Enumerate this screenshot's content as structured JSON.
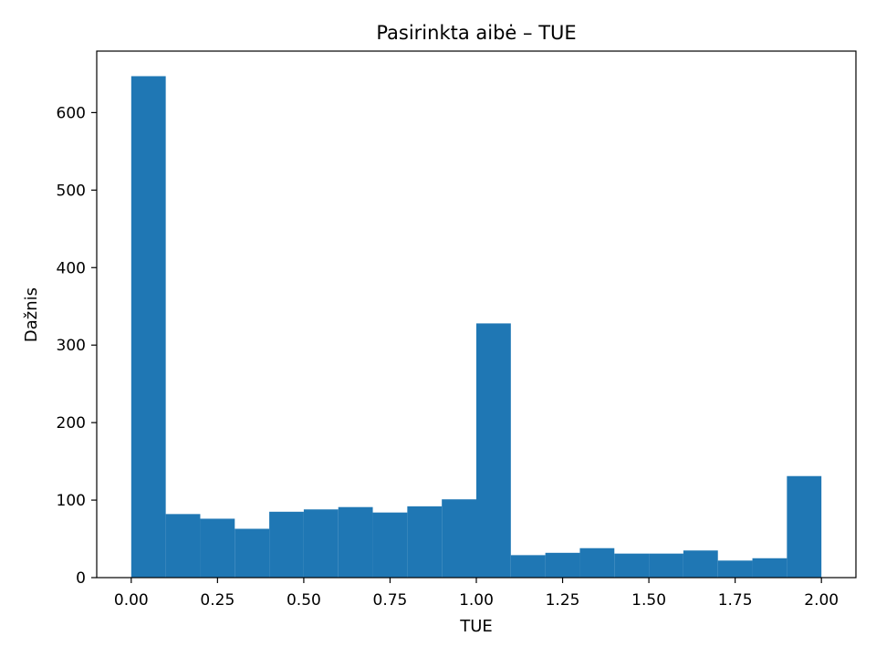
{
  "chart_data": {
    "type": "bar",
    "title": "Pasirinkta aibė – TUE",
    "xlabel": "TUE",
    "ylabel": "Dažnis",
    "bin_edges": [
      0.0,
      0.1,
      0.2,
      0.3,
      0.4,
      0.5,
      0.6,
      0.7,
      0.8,
      0.9,
      1.0,
      1.1,
      1.2,
      1.3,
      1.4,
      1.5,
      1.6,
      1.7,
      1.8,
      1.9,
      2.0
    ],
    "values": [
      647,
      82,
      76,
      63,
      85,
      88,
      91,
      84,
      92,
      101,
      328,
      29,
      32,
      38,
      31,
      31,
      35,
      22,
      25,
      131
    ],
    "xlim": [
      -0.1,
      2.1
    ],
    "ylim": [
      0,
      679.35
    ],
    "xticks": [
      0.0,
      0.25,
      0.5,
      0.75,
      1.0,
      1.25,
      1.5,
      1.75,
      2.0
    ],
    "xtick_labels": [
      "0.00",
      "0.25",
      "0.50",
      "0.75",
      "1.00",
      "1.25",
      "1.50",
      "1.75",
      "2.00"
    ],
    "yticks": [
      0,
      100,
      200,
      300,
      400,
      500,
      600
    ],
    "ytick_labels": [
      "0",
      "100",
      "200",
      "300",
      "400",
      "500",
      "600"
    ],
    "bar_color": "#1f77b4",
    "grid": false,
    "legend": "none"
  }
}
